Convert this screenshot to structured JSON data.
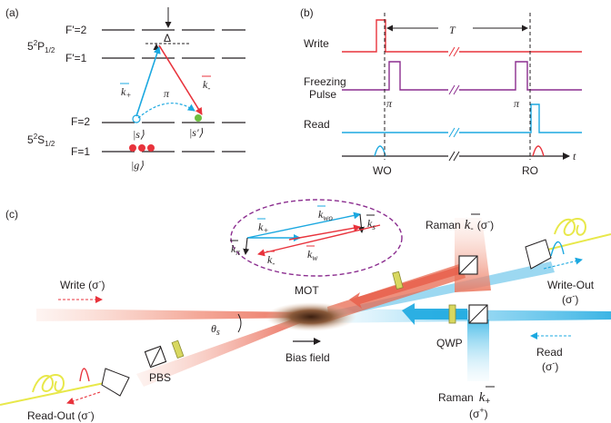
{
  "panel_a": {
    "label": "(a)",
    "level_fp2": "F'=2",
    "level_fp1": "F'=1",
    "level_f2": "F=2",
    "level_f1": "F=1",
    "state_p_main": "5",
    "state_p_sup": "2",
    "state_p_letter": "P",
    "state_p_sub": "1/2",
    "state_s_main": "5",
    "state_s_sup": "2",
    "state_s_letter": "S",
    "state_s_sub": "1/2",
    "detuning": "Δ",
    "k_plus": "k",
    "k_plus_sub": "+",
    "k_minus": "k",
    "k_minus_sub": "-",
    "pi": "π",
    "ket_s": "|s⟩",
    "ket_s_prime": "|s'⟩",
    "ket_g": "|g⟩"
  },
  "panel_b": {
    "label": "(b)",
    "period": "T",
    "row_write": "Write",
    "row_freezing_1": "Freezing",
    "row_freezing_2": "Pulse",
    "row_read": "Read",
    "pi_1": "π",
    "pi_2": "π",
    "time_axis": "t",
    "tick_wo": "WO",
    "tick_ro": "RO"
  },
  "panel_c": {
    "label": "(c)",
    "mot": "MOT",
    "bias_field": "Bias field",
    "theta_main": "θ",
    "theta_sub": "s",
    "write_in": "Write (σ",
    "write_in_sup": "-",
    "read_out": "Read-Out (σ",
    "read_out_sup": "-",
    "pbs": "PBS",
    "qwp": "QWP",
    "raman_minus": "Raman",
    "raman_minus_k": "k",
    "raman_minus_sub": "-",
    "raman_minus_pol": "(σ",
    "raman_minus_pol_sup": "-",
    "write_out_1": "Write-Out",
    "write_out_2": "(σ",
    "write_out_2_sup": "-",
    "read_in_1": "Read",
    "read_in_2": "(σ",
    "read_in_2_sup": "-",
    "raman_plus": "Raman",
    "raman_plus_k": "k",
    "raman_plus_sub": "+",
    "raman_plus_pol": "(σ",
    "raman_plus_pol_sup": "+",
    "vec_k_plus": "k",
    "vec_k_plus_sub": "+",
    "vec_k_wo": "k",
    "vec_k_wo_sub": "wo",
    "vec_k_s": "k",
    "vec_k_s_sub": "s",
    "vec_k_pi": "k",
    "vec_k_pi_sub": "π",
    "vec_k_minus": "k",
    "vec_k_minus_sub": "-",
    "vec_k_w": "k",
    "vec_k_w_sub": "w"
  },
  "colors": {
    "red": "#e8333c",
    "blue": "#1ba8e0",
    "purple": "#8b2d8f",
    "yellow": "#e8e84a",
    "dark": "#231f20"
  }
}
